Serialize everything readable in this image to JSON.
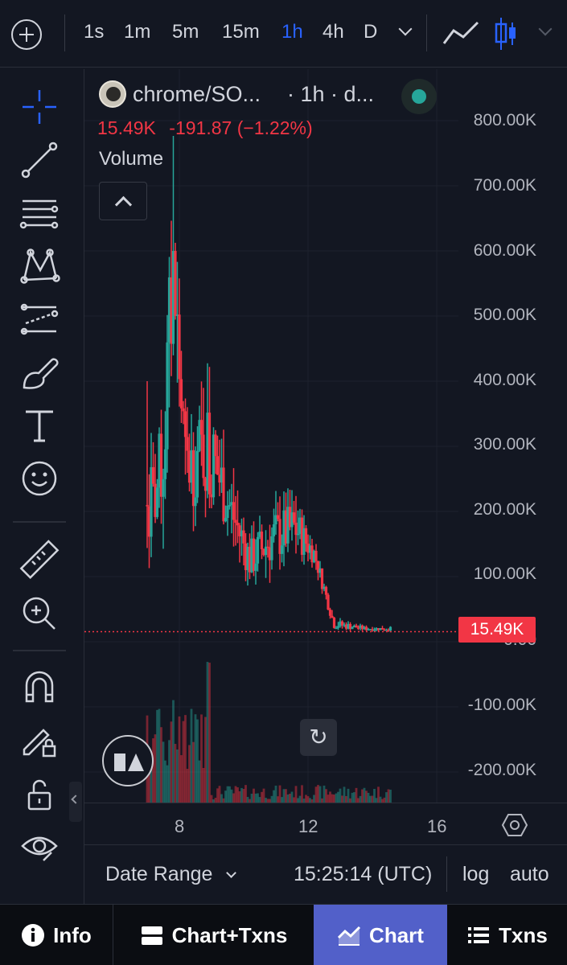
{
  "toolbar": {
    "intervals": [
      "1s",
      "1m",
      "5m",
      "15m",
      "1h",
      "4h",
      "D"
    ],
    "active_interval": "1h"
  },
  "legend": {
    "symbol": "chrome/SO...",
    "interval_exchange": "· 1h · d...",
    "last_value": "15.49K",
    "change": "-191.87 (−1.22%)",
    "volume_label": "Volume"
  },
  "price_axis": {
    "labels": [
      "800.00K",
      "700.00K",
      "600.00K",
      "500.00K",
      "400.00K",
      "300.00K",
      "200.00K",
      "100.00K",
      "0.00",
      "-100.00K",
      "-200.00K"
    ],
    "last_price_tag": "15.49K"
  },
  "time_axis": {
    "labels": [
      "8",
      "12",
      "16"
    ]
  },
  "bottom_controls": {
    "date_range": "Date Range",
    "time": "15:25:14 (UTC)",
    "log": "log",
    "auto": "auto"
  },
  "tabs": [
    {
      "label": "Info",
      "icon": "info-icon"
    },
    {
      "label": "Chart+Txns",
      "icon": "split-view-icon"
    },
    {
      "label": "Chart",
      "icon": "chart-icon",
      "active": true
    },
    {
      "label": "Txns",
      "icon": "list-icon"
    }
  ],
  "colors": {
    "up": "#26a69a",
    "down": "#f23645",
    "active": "#2962ff",
    "tab_active": "#5260c9"
  },
  "chart_data": {
    "type": "candlestick",
    "x_ticks": [
      "8",
      "12",
      "16"
    ],
    "ylim": [
      -250000,
      850000
    ],
    "price_samples": [
      {
        "x": 7.0,
        "low": 20000,
        "high": 400000
      },
      {
        "x": 7.2,
        "low": 120000,
        "high": 300000
      },
      {
        "x": 7.5,
        "low": 150000,
        "high": 420000
      },
      {
        "x": 7.8,
        "low": 350000,
        "high": 790000
      },
      {
        "x": 8.2,
        "low": 160000,
        "high": 360000
      },
      {
        "x": 8.9,
        "low": 170000,
        "high": 430000
      },
      {
        "x": 9.5,
        "low": 130000,
        "high": 300000
      },
      {
        "x": 10.2,
        "low": 70000,
        "high": 180000
      },
      {
        "x": 10.9,
        "low": 90000,
        "high": 230000
      },
      {
        "x": 11.6,
        "low": 110000,
        "high": 240000
      },
      {
        "x": 12.2,
        "low": 110000,
        "high": 160000
      },
      {
        "x": 12.8,
        "low": 15000,
        "high": 40000
      },
      {
        "x": 13.8,
        "low": 15000,
        "high": 25000
      }
    ],
    "last_price": 15490
  }
}
